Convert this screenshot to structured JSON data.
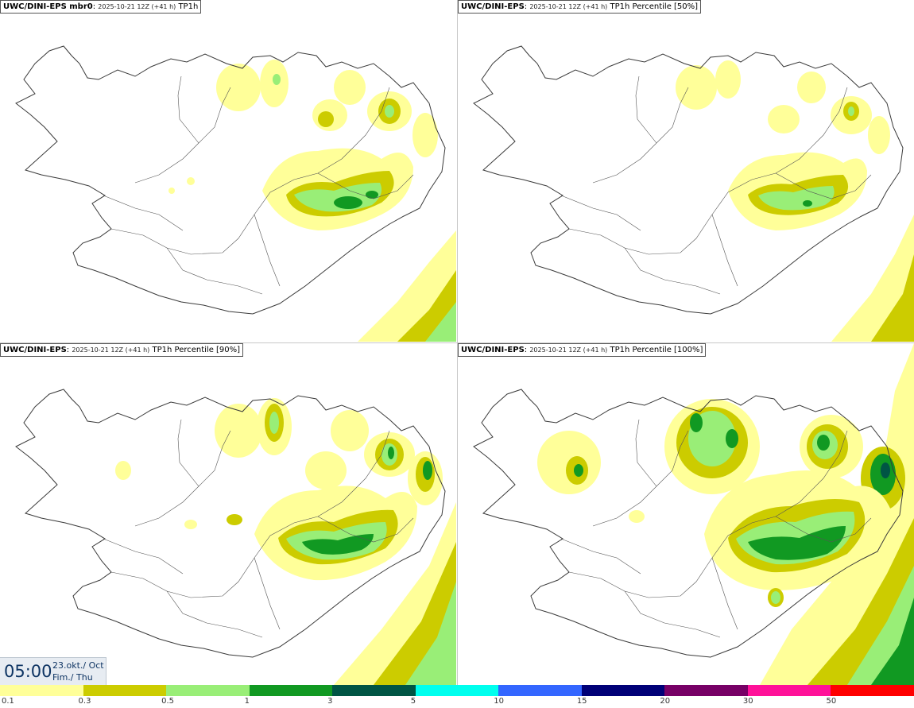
{
  "panels": [
    {
      "source": "UWC/DINI-EPS mbr0",
      "run": "2025-10-21 12Z (+41 h)",
      "field": "TP1h"
    },
    {
      "source": "UWC/DINI-EPS",
      "run": "2025-10-21 12Z (+41 h)",
      "field": "TP1h Percentile [50%]"
    },
    {
      "source": "UWC/DINI-EPS",
      "run": "2025-10-21 12Z (+41 h)",
      "field": "TP1h Percentile [90%]"
    },
    {
      "source": "UWC/DINI-EPS",
      "run": "2025-10-21 12Z (+41 h)",
      "field": "TP1h Percentile [100%]"
    }
  ],
  "time": {
    "clock": "05:00",
    "date": "23.okt./ Oct",
    "day": "Fim./ Thu"
  },
  "legend": {
    "labels": [
      "0.1",
      "0.3",
      "0.5",
      "1",
      "3",
      "5",
      "10",
      "15",
      "20",
      "30",
      "50"
    ],
    "colors": [
      "#ffff99",
      "#cccc00",
      "#99ee77",
      "#119922",
      "#005544",
      "#00ffee",
      "#3366ff",
      "#000077",
      "#770066",
      "#ff1199",
      "#ff0000"
    ]
  },
  "colors": {
    "coast": "#3a3a3a",
    "level_01": "#ffff99",
    "level_03": "#cccc00",
    "level_05": "#99ee77",
    "level_1": "#119922",
    "level_3": "#005544"
  }
}
